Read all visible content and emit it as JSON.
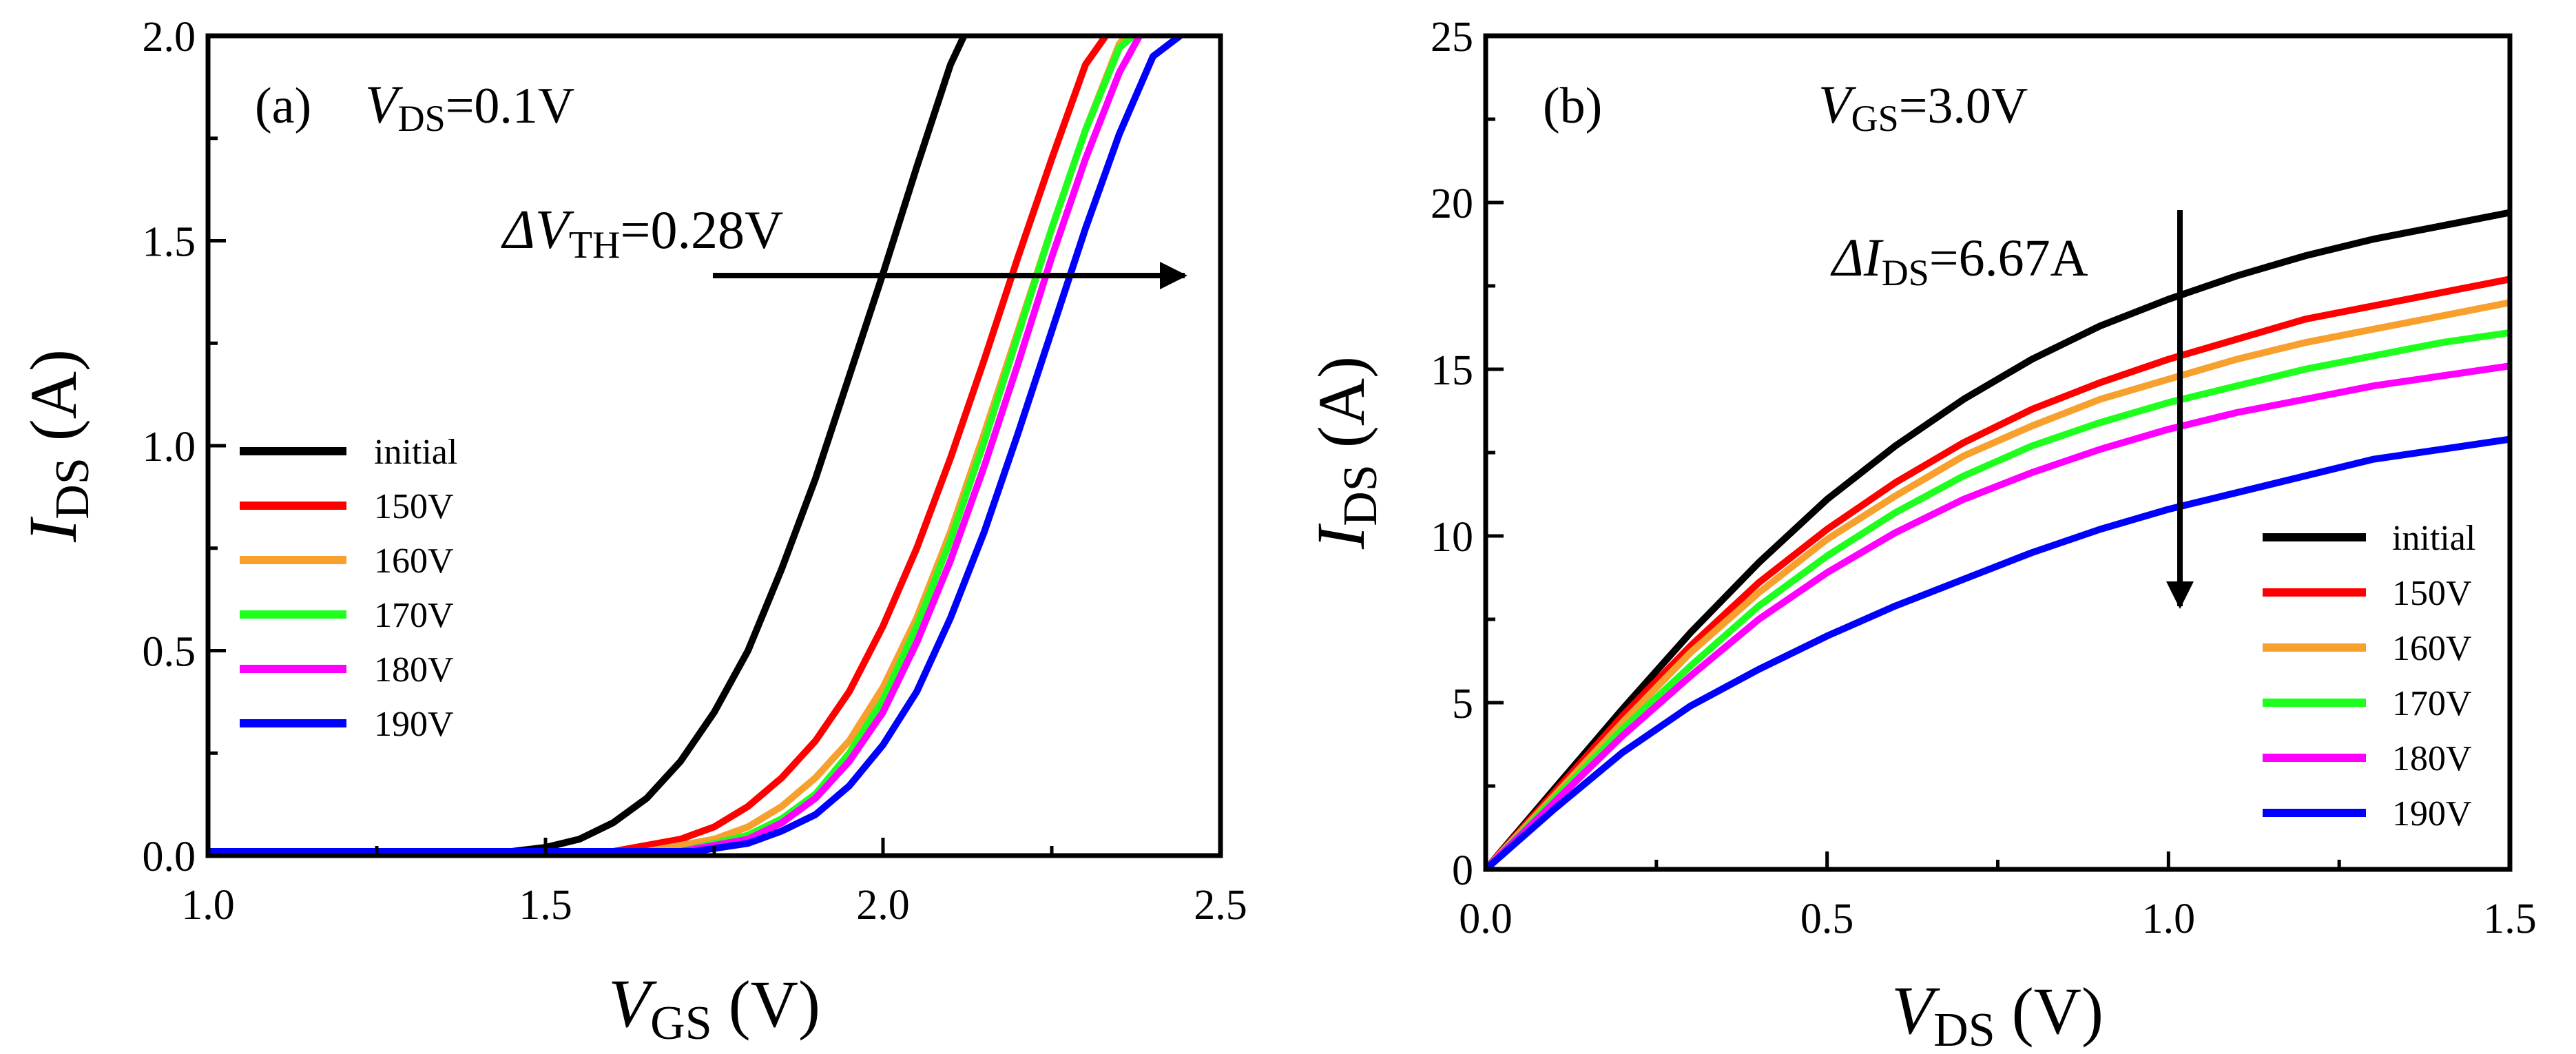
{
  "chart_data": [
    {
      "type": "line",
      "panel_label": "(a)",
      "condition": {
        "symbol": "V",
        "subscript": "DS",
        "value": "=0.1V"
      },
      "annotation": {
        "symbol": "ΔV",
        "subscript": "TH",
        "value": "=0.28V"
      },
      "xlabel": {
        "symbol": "V",
        "subscript": "GS",
        "unit": " (V)"
      },
      "ylabel": {
        "symbol": "I",
        "subscript": "DS",
        "unit": " (A)"
      },
      "xlim": [
        1.0,
        2.5
      ],
      "ylim": [
        0.0,
        2.0
      ],
      "xticks": [
        1.0,
        1.5,
        2.0,
        2.5
      ],
      "xtick_labels": [
        "1.0",
        "1.5",
        "2.0",
        "2.5"
      ],
      "yticks": [
        0.0,
        0.5,
        1.0,
        1.5,
        2.0
      ],
      "ytick_labels": [
        "0.0",
        "0.5",
        "1.0",
        "1.5",
        "2.0"
      ],
      "legend_position": "center-left",
      "series": [
        {
          "name": "initial",
          "color": "#000000",
          "x": [
            1.0,
            1.45,
            1.5,
            1.55,
            1.6,
            1.65,
            1.7,
            1.75,
            1.8,
            1.85,
            1.9,
            1.95,
            2.0,
            2.05,
            2.1,
            2.12
          ],
          "y": [
            0.01,
            0.01,
            0.02,
            0.04,
            0.08,
            0.14,
            0.23,
            0.35,
            0.5,
            0.7,
            0.92,
            1.17,
            1.42,
            1.68,
            1.93,
            2.0
          ]
        },
        {
          "name": "150V",
          "color": "#ff0000",
          "x": [
            1.0,
            1.6,
            1.7,
            1.75,
            1.8,
            1.85,
            1.9,
            1.95,
            2.0,
            2.05,
            2.1,
            2.15,
            2.2,
            2.25,
            2.3,
            2.33
          ],
          "y": [
            0.01,
            0.01,
            0.04,
            0.07,
            0.12,
            0.19,
            0.28,
            0.4,
            0.56,
            0.75,
            0.97,
            1.21,
            1.46,
            1.7,
            1.93,
            2.0
          ]
        },
        {
          "name": "160V",
          "color": "#f7a02d",
          "x": [
            1.0,
            1.65,
            1.75,
            1.8,
            1.85,
            1.9,
            1.95,
            2.0,
            2.05,
            2.1,
            2.15,
            2.2,
            2.25,
            2.3,
            2.35,
            2.36
          ],
          "y": [
            0.01,
            0.01,
            0.04,
            0.07,
            0.12,
            0.19,
            0.28,
            0.41,
            0.58,
            0.79,
            1.03,
            1.28,
            1.53,
            1.77,
            1.98,
            2.0
          ]
        },
        {
          "name": "170V",
          "color": "#1eff1e",
          "x": [
            1.0,
            1.7,
            1.8,
            1.85,
            1.9,
            1.95,
            2.0,
            2.05,
            2.1,
            2.15,
            2.2,
            2.25,
            2.3,
            2.35,
            2.37
          ],
          "y": [
            0.01,
            0.01,
            0.05,
            0.09,
            0.15,
            0.25,
            0.38,
            0.56,
            0.77,
            1.01,
            1.27,
            1.53,
            1.77,
            1.97,
            2.0
          ]
        },
        {
          "name": "180V",
          "color": "#ff00ff",
          "x": [
            1.0,
            1.7,
            1.8,
            1.85,
            1.9,
            1.95,
            2.0,
            2.05,
            2.1,
            2.15,
            2.2,
            2.25,
            2.3,
            2.35,
            2.38
          ],
          "y": [
            0.01,
            0.01,
            0.04,
            0.08,
            0.14,
            0.23,
            0.35,
            0.52,
            0.72,
            0.95,
            1.2,
            1.46,
            1.7,
            1.91,
            2.0
          ]
        },
        {
          "name": "190V",
          "color": "#0000ff",
          "x": [
            1.0,
            1.72,
            1.8,
            1.85,
            1.9,
            1.95,
            2.0,
            2.05,
            2.1,
            2.15,
            2.2,
            2.25,
            2.3,
            2.35,
            2.4,
            2.44
          ],
          "y": [
            0.01,
            0.01,
            0.03,
            0.06,
            0.1,
            0.17,
            0.27,
            0.4,
            0.58,
            0.79,
            1.03,
            1.28,
            1.53,
            1.76,
            1.95,
            2.0
          ]
        }
      ]
    },
    {
      "type": "line",
      "panel_label": "(b)",
      "condition": {
        "symbol": "V",
        "subscript": "GS",
        "value": "=3.0V"
      },
      "annotation": {
        "symbol": "ΔI",
        "subscript": "DS",
        "value": "=6.67A"
      },
      "xlabel": {
        "symbol": "V",
        "subscript": "DS",
        "unit": " (V)"
      },
      "ylabel": {
        "symbol": "I",
        "subscript": "DS",
        "unit": " (A)"
      },
      "xlim": [
        0.0,
        1.5
      ],
      "ylim": [
        0,
        25
      ],
      "xticks": [
        0.0,
        0.5,
        1.0,
        1.5
      ],
      "xtick_labels": [
        "0.0",
        "0.5",
        "1.0",
        "1.5"
      ],
      "yticks": [
        0,
        5,
        10,
        15,
        20,
        25
      ],
      "ytick_labels": [
        "0",
        "5",
        "10",
        "15",
        "20",
        "25"
      ],
      "legend_position": "center-right",
      "series": [
        {
          "name": "initial",
          "color": "#000000",
          "x": [
            0.0,
            0.1,
            0.2,
            0.3,
            0.4,
            0.5,
            0.6,
            0.7,
            0.8,
            0.9,
            1.0,
            1.1,
            1.2,
            1.3,
            1.4,
            1.5
          ],
          "y": [
            0.0,
            2.4,
            4.8,
            7.1,
            9.2,
            11.1,
            12.7,
            14.1,
            15.3,
            16.3,
            17.1,
            17.8,
            18.4,
            18.9,
            19.3,
            19.7
          ]
        },
        {
          "name": "150V",
          "color": "#ff0000",
          "x": [
            0.0,
            0.1,
            0.2,
            0.3,
            0.4,
            0.5,
            0.6,
            0.7,
            0.8,
            0.9,
            1.0,
            1.1,
            1.2,
            1.3,
            1.4,
            1.5
          ],
          "y": [
            0.0,
            2.3,
            4.6,
            6.7,
            8.6,
            10.2,
            11.6,
            12.8,
            13.8,
            14.6,
            15.3,
            15.9,
            16.5,
            16.9,
            17.3,
            17.7
          ]
        },
        {
          "name": "160V",
          "color": "#f7a02d",
          "x": [
            0.0,
            0.1,
            0.2,
            0.3,
            0.4,
            0.5,
            0.6,
            0.7,
            0.8,
            0.9,
            1.0,
            1.1,
            1.2,
            1.3,
            1.4,
            1.5
          ],
          "y": [
            0.0,
            2.2,
            4.4,
            6.5,
            8.3,
            9.9,
            11.2,
            12.4,
            13.3,
            14.1,
            14.7,
            15.3,
            15.8,
            16.2,
            16.6,
            17.0
          ]
        },
        {
          "name": "170V",
          "color": "#1eff1e",
          "x": [
            0.0,
            0.1,
            0.2,
            0.3,
            0.4,
            0.5,
            0.6,
            0.7,
            0.8,
            0.9,
            1.0,
            1.1,
            1.2,
            1.3,
            1.4,
            1.5
          ],
          "y": [
            0.0,
            2.1,
            4.2,
            6.1,
            7.9,
            9.4,
            10.7,
            11.8,
            12.7,
            13.4,
            14.0,
            14.5,
            15.0,
            15.4,
            15.8,
            16.1
          ]
        },
        {
          "name": "180V",
          "color": "#ff00ff",
          "x": [
            0.0,
            0.1,
            0.2,
            0.3,
            0.4,
            0.5,
            0.6,
            0.7,
            0.8,
            0.9,
            1.0,
            1.1,
            1.2,
            1.3,
            1.4,
            1.5
          ],
          "y": [
            0.0,
            2.0,
            4.0,
            5.8,
            7.5,
            8.9,
            10.1,
            11.1,
            11.9,
            12.6,
            13.2,
            13.7,
            14.1,
            14.5,
            14.8,
            15.1
          ]
        },
        {
          "name": "190V",
          "color": "#0000ff",
          "x": [
            0.0,
            0.1,
            0.2,
            0.3,
            0.4,
            0.5,
            0.6,
            0.7,
            0.8,
            0.9,
            1.0,
            1.1,
            1.2,
            1.3,
            1.4,
            1.5
          ],
          "y": [
            0.0,
            1.8,
            3.5,
            4.9,
            6.0,
            7.0,
            7.9,
            8.7,
            9.5,
            10.2,
            10.8,
            11.3,
            11.8,
            12.3,
            12.6,
            12.9
          ]
        }
      ]
    }
  ]
}
